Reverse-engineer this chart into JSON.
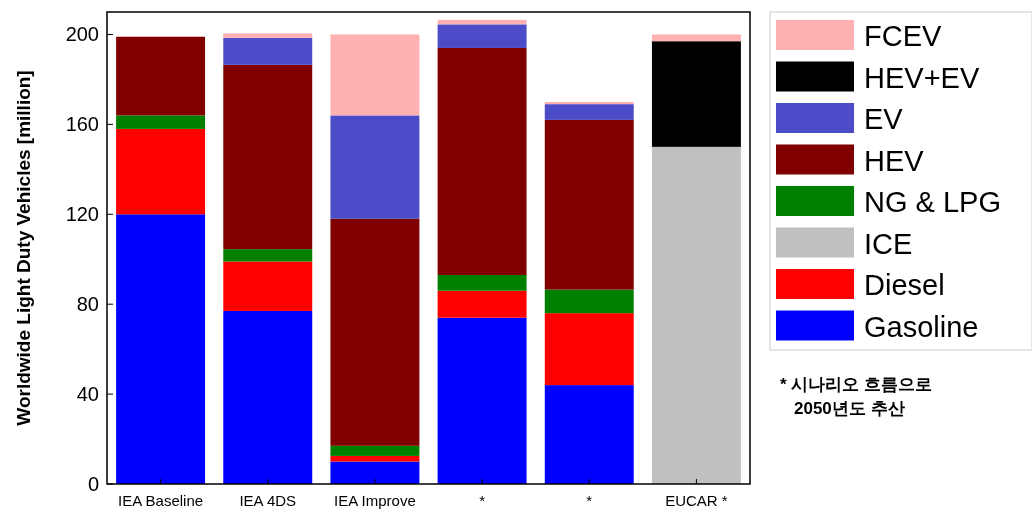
{
  "chart_data": {
    "type": "bar",
    "stacked": true,
    "ylabel": "Worldwide Light Duty Vehicles [million]",
    "categories": [
      "IEA Baseline",
      "IEA 4DS",
      "IEA Improve",
      "*",
      "*",
      "EUCAR *"
    ],
    "series": [
      {
        "name": "Gasoline",
        "color": "#0000ff",
        "values": [
          120,
          77,
          10,
          74,
          44,
          null
        ]
      },
      {
        "name": "Diesel",
        "color": "#ff0000",
        "values": [
          38,
          22,
          2.5,
          12,
          32,
          null
        ]
      },
      {
        "name": "ICE",
        "color": "#c0c0c0",
        "values": [
          null,
          null,
          null,
          null,
          null,
          150
        ]
      },
      {
        "name": "NG & LPG",
        "color": "#008000",
        "values": [
          6,
          5.5,
          4.5,
          7,
          10.5,
          null
        ]
      },
      {
        "name": "HEV",
        "color": "#800000",
        "values": [
          35,
          82,
          101,
          101,
          75.5,
          null
        ]
      },
      {
        "name": "EV",
        "color": "#4c4cc8",
        "values": [
          null,
          12,
          46,
          10.5,
          7,
          null
        ]
      },
      {
        "name": "HEV+EV",
        "color": "#000000",
        "values": [
          null,
          null,
          null,
          null,
          null,
          47
        ]
      },
      {
        "name": "FCEV",
        "color": "#ffb0b0",
        "values": [
          null,
          2,
          36,
          2,
          1,
          3
        ]
      }
    ],
    "ylim": [
      0,
      210
    ],
    "yticks": [
      0,
      40,
      80,
      120,
      160,
      200
    ],
    "grid": false,
    "legend": "right",
    "annotations": [
      "* 시나리오 흐름으로\n2050년도 추산"
    ]
  }
}
